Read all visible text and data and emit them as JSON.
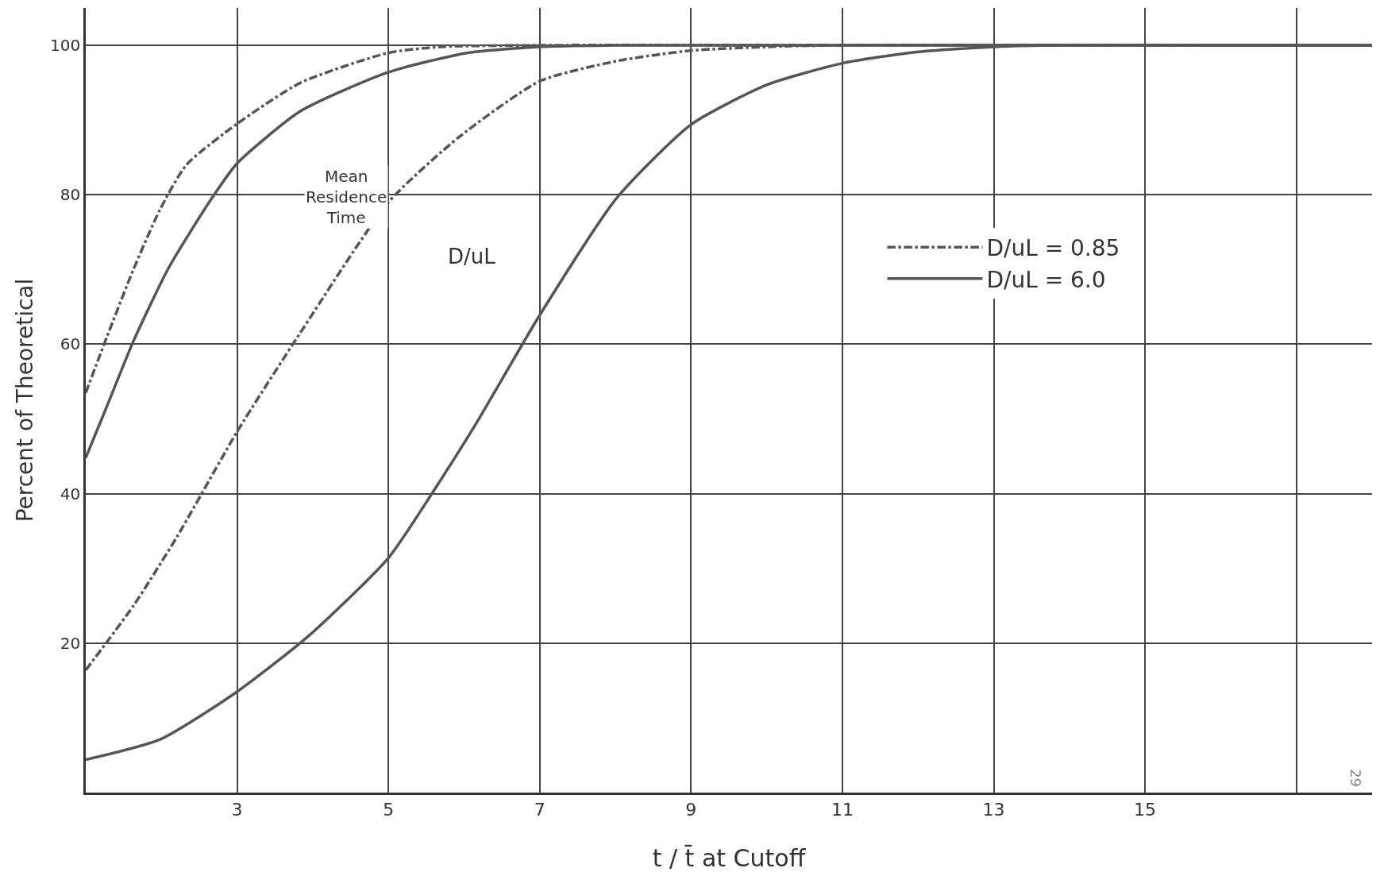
{
  "chart_data": {
    "type": "line",
    "xlabel": "t / t̄ at Cutoff",
    "ylabel": "Percent of Theoretical",
    "xlim": [
      1,
      18
    ],
    "xticks": [
      3,
      5,
      7,
      9,
      11,
      13,
      15,
      {
        "value": 17,
        "label": null
      }
    ],
    "ylim": [
      0,
      105
    ],
    "yticks": [
      20,
      40,
      60,
      80,
      100
    ],
    "grid": true,
    "legend": "right",
    "marker": "none",
    "series": [
      {
        "name": "D/uL = 0.85",
        "color": "#555555",
        "line_style": "dashed",
        "x": [
          1,
          1.28,
          1.63,
          1.98,
          2.33,
          3,
          3.84,
          5,
          5.7,
          7,
          18
        ],
        "values": [
          53.5,
          61,
          70,
          78,
          84,
          89.5,
          95,
          99,
          99.8,
          100,
          100
        ]
      },
      {
        "name": "D/uL = 6.0",
        "color": "#555555",
        "line_style": "solid",
        "x": [
          1,
          1.28,
          1.63,
          2.1,
          2.67,
          3,
          3.84,
          5,
          6.05,
          7,
          8.02,
          18
        ],
        "values": [
          44.8,
          51.7,
          60.4,
          70.3,
          79.6,
          84.2,
          91.2,
          96.4,
          99,
          99.8,
          100,
          100
        ]
      },
      {
        "color": "#555555",
        "line_style": "dashed",
        "x": [
          1,
          1.63,
          2.21,
          3,
          3.84,
          5,
          5.93,
          7,
          8.02,
          9,
          10.3,
          11,
          18
        ],
        "values": [
          16.4,
          25,
          34.3,
          48.3,
          61.6,
          79,
          87.7,
          95.2,
          97.9,
          99.3,
          99.9,
          100,
          100
        ]
      },
      {
        "color": "#555555",
        "line_style": "solid",
        "x": [
          1,
          1.98,
          3,
          3.95,
          5,
          5.58,
          6.16,
          7,
          8.02,
          9,
          10,
          11,
          11.98,
          13,
          13.84,
          18
        ],
        "values": [
          4.4,
          7.1,
          13.5,
          21,
          31.4,
          40.1,
          49.4,
          63.9,
          79.6,
          89.4,
          94.7,
          97.6,
          99.1,
          99.8,
          100,
          100
        ]
      }
    ],
    "annotations": [
      "Mean Residence Time",
      "D/uL",
      "29"
    ]
  }
}
